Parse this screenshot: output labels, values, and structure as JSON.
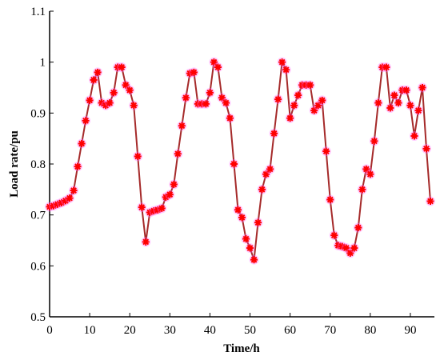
{
  "chart_data": {
    "type": "line",
    "xlabel": "Time/h",
    "ylabel": "Load rate/pu",
    "xlim": [
      0,
      96
    ],
    "ylim": [
      0.5,
      1.1
    ],
    "xticks": [
      0,
      10,
      20,
      30,
      40,
      50,
      60,
      70,
      80,
      90
    ],
    "yticks": [
      0.5,
      0.6,
      0.7,
      0.8,
      0.9,
      1.0,
      1.1
    ],
    "ytick_labels": [
      "0.5",
      "0.6",
      "0.7",
      "0.8",
      "0.9",
      "1",
      "1.1"
    ],
    "grid": false,
    "legend": "none",
    "line_color": "#a52a2a",
    "marker_color": "#ff0000",
    "marker_halo_color": "#ff66ff",
    "marker": "asterisk",
    "series": [
      {
        "x": [
          0,
          1,
          2,
          3,
          4,
          5,
          6,
          7,
          8,
          9,
          10,
          11,
          12,
          13,
          14,
          15,
          16,
          17,
          18,
          19,
          20,
          21,
          22,
          23,
          24,
          25,
          26,
          27,
          28,
          29,
          30,
          31,
          32,
          33,
          34,
          35,
          36,
          37,
          38,
          39,
          40,
          41,
          42,
          43,
          44,
          45,
          46,
          47,
          48,
          49,
          50,
          51,
          52,
          53,
          54,
          55,
          56,
          57,
          58,
          59,
          60,
          61,
          62,
          63,
          64,
          65,
          66,
          67,
          68,
          69,
          70,
          71,
          72,
          73,
          74,
          75,
          76,
          77,
          78,
          79,
          80,
          81,
          82,
          83,
          84,
          85,
          86,
          87,
          88,
          89,
          90,
          91,
          92,
          93,
          94,
          95
        ],
        "values": [
          0.716,
          0.718,
          0.721,
          0.724,
          0.728,
          0.733,
          0.748,
          0.795,
          0.84,
          0.885,
          0.925,
          0.965,
          0.98,
          0.92,
          0.915,
          0.92,
          0.94,
          0.99,
          0.99,
          0.955,
          0.945,
          0.915,
          0.815,
          0.715,
          0.647,
          0.705,
          0.708,
          0.71,
          0.713,
          0.735,
          0.74,
          0.76,
          0.82,
          0.875,
          0.93,
          0.978,
          0.98,
          0.918,
          0.918,
          0.918,
          0.94,
          1.0,
          0.99,
          0.93,
          0.92,
          0.89,
          0.8,
          0.71,
          0.695,
          0.653,
          0.635,
          0.612,
          0.685,
          0.75,
          0.78,
          0.79,
          0.86,
          0.927,
          1.0,
          0.985,
          0.89,
          0.915,
          0.935,
          0.955,
          0.955,
          0.955,
          0.905,
          0.915,
          0.925,
          0.825,
          0.73,
          0.66,
          0.64,
          0.638,
          0.635,
          0.625,
          0.635,
          0.675,
          0.75,
          0.79,
          0.78,
          0.845,
          0.92,
          0.99,
          0.99,
          0.91,
          0.935,
          0.92,
          0.945,
          0.945,
          0.915,
          0.855,
          0.905,
          0.95,
          0.83,
          0.727
        ]
      }
    ]
  }
}
